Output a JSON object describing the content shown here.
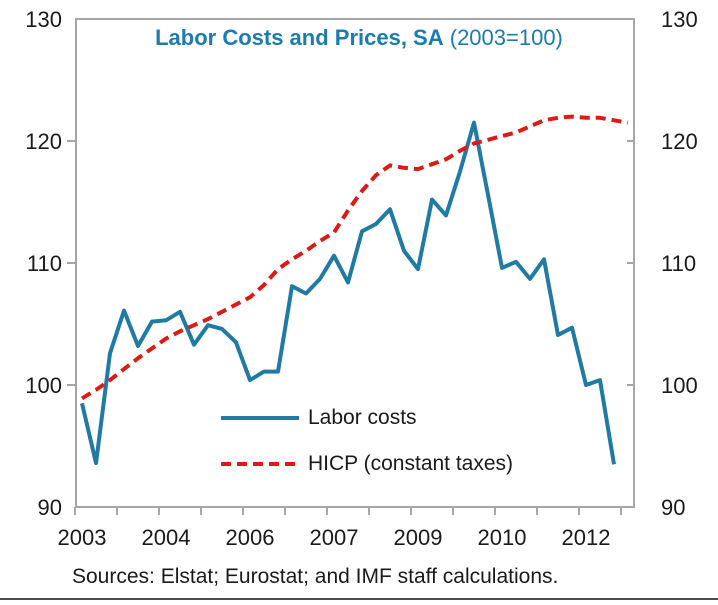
{
  "title": {
    "main": "Labor Costs and Prices, SA",
    "suffix": " (2003=100)"
  },
  "legend": {
    "items": [
      {
        "label": "Labor costs"
      },
      {
        "label": "HICP (constant taxes)"
      }
    ]
  },
  "footer": {
    "text": "Sources: Elstat; Eurostat; and IMF staff calculations."
  },
  "colors": {
    "labor_costs": "#1F7BA4",
    "hicp": "#DD1A13",
    "title": "#1A7DAD",
    "axis": "#A6A6A6",
    "text": "#1A1A1A",
    "bottom_rule": "#4D4D4D"
  },
  "chart_data": {
    "type": "line",
    "title": "Labor Costs and Prices, SA (2003=100)",
    "x_start": "2003Q1",
    "x_frequency": "quarterly",
    "n_quarters": 40,
    "ylim": [
      90,
      130
    ],
    "y_ticks": [
      90,
      100,
      110,
      120,
      130
    ],
    "x_tick_labels": [
      {
        "quarter_index": 0,
        "label": "2003"
      },
      {
        "quarter_index": 6,
        "label": "2004"
      },
      {
        "quarter_index": 12,
        "label": "2006"
      },
      {
        "quarter_index": 18,
        "label": "2007"
      },
      {
        "quarter_index": 24,
        "label": "2009"
      },
      {
        "quarter_index": 30,
        "label": "2010"
      },
      {
        "quarter_index": 36,
        "label": "2012"
      }
    ],
    "grid": false,
    "legend_position": "inside-bottom-left",
    "series": [
      {
        "name": "Labor costs",
        "style": "solid",
        "color": "#1F7BA4",
        "values": [
          98.5,
          93.6,
          102.6,
          106.1,
          103.2,
          105.2,
          105.3,
          106.0,
          103.3,
          104.9,
          104.6,
          103.5,
          100.4,
          101.1,
          101.1,
          108.1,
          107.5,
          108.7,
          110.6,
          108.4,
          112.6,
          113.2,
          114.4,
          111.0,
          109.5,
          115.2,
          113.9,
          117.5,
          121.5,
          115.6,
          109.6,
          110.1,
          108.7,
          110.3,
          104.1,
          104.7,
          100.0,
          100.4,
          93.5
        ]
      },
      {
        "name": "HICP (constant taxes)",
        "style": "dashed",
        "color": "#DD1A13",
        "values": [
          98.9,
          99.6,
          100.4,
          101.3,
          102.2,
          103.0,
          103.8,
          104.4,
          104.9,
          105.4,
          106.0,
          106.6,
          107.2,
          108.2,
          109.5,
          110.3,
          111.0,
          111.8,
          112.5,
          114.3,
          115.9,
          117.2,
          118.0,
          117.8,
          117.7,
          118.1,
          118.5,
          119.2,
          119.8,
          120.1,
          120.4,
          120.7,
          121.2,
          121.7,
          121.9,
          122.0,
          121.9,
          121.9,
          121.7,
          121.5
        ]
      }
    ]
  }
}
